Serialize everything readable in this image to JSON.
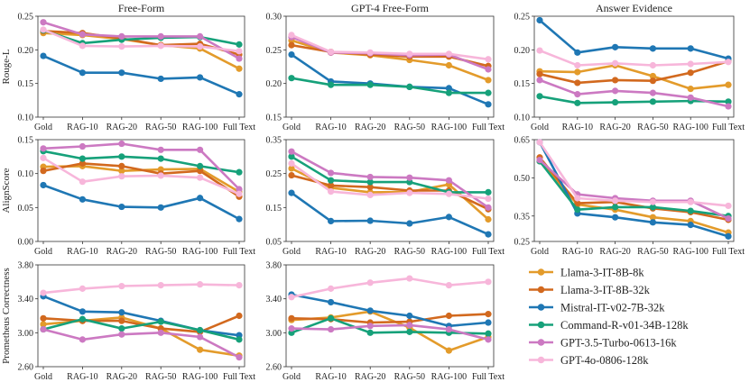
{
  "x_categories": [
    "Gold",
    "RAG-10",
    "RAG-20",
    "RAG-50",
    "RAG-100",
    "Full Text"
  ],
  "colors": {
    "Llama-3-IT-8B-8k": "#E39B2B",
    "Llama-3-IT-8B-32k": "#D2691E",
    "Mistral-IT-v02-7B-32k": "#1F77B4",
    "Command-R-v01-34B-128k": "#16A17A",
    "GPT-3.5-Turbo-0613-16k": "#CC79C2",
    "GPT-4o-0806-128k": "#F7B6DA"
  },
  "legend": [
    "Llama-3-IT-8B-8k",
    "Llama-3-IT-8B-32k",
    "Mistral-IT-v02-7B-32k",
    "Command-R-v01-34B-128k",
    "GPT-3.5-Turbo-0613-16k",
    "GPT-4o-0806-128k"
  ],
  "chart_data": [
    {
      "id": "p00",
      "type": "line",
      "title": "Free-Form",
      "ylabel": "Rouge-L",
      "row": 0,
      "col": 0,
      "ylim": [
        0.1,
        0.25
      ],
      "yticks": [
        "0.10",
        "0.15",
        "0.20",
        "0.25"
      ],
      "series": [
        {
          "name": "Llama-3-IT-8B-8k",
          "values": [
            0.225,
            0.222,
            0.216,
            0.207,
            0.202,
            0.172
          ]
        },
        {
          "name": "Llama-3-IT-8B-32k",
          "values": [
            0.228,
            0.225,
            0.217,
            0.207,
            0.209,
            0.193
          ]
        },
        {
          "name": "Mistral-IT-v02-7B-32k",
          "values": [
            0.191,
            0.166,
            0.166,
            0.157,
            0.159,
            0.134
          ]
        },
        {
          "name": "Command-R-v01-34B-128k",
          "values": [
            0.229,
            0.21,
            0.215,
            0.218,
            0.219,
            0.208
          ]
        },
        {
          "name": "GPT-3.5-Turbo-0613-16k",
          "values": [
            0.241,
            0.223,
            0.22,
            0.22,
            0.22,
            0.187
          ]
        },
        {
          "name": "GPT-4o-0806-128k",
          "values": [
            0.23,
            0.206,
            0.205,
            0.206,
            0.205,
            0.198
          ]
        }
      ]
    },
    {
      "id": "p01",
      "type": "line",
      "title": "GPT-4 Free-Form",
      "ylabel": "",
      "row": 0,
      "col": 1,
      "ylim": [
        0.15,
        0.3
      ],
      "yticks": [
        "0.15",
        "0.20",
        "0.25",
        "0.30"
      ],
      "series": [
        {
          "name": "Llama-3-IT-8B-8k",
          "values": [
            0.264,
            0.246,
            0.242,
            0.235,
            0.227,
            0.205
          ]
        },
        {
          "name": "Llama-3-IT-8B-32k",
          "values": [
            0.257,
            0.247,
            0.243,
            0.24,
            0.24,
            0.226
          ]
        },
        {
          "name": "Mistral-IT-v02-7B-32k",
          "values": [
            0.243,
            0.203,
            0.2,
            0.195,
            0.193,
            0.169
          ]
        },
        {
          "name": "Command-R-v01-34B-128k",
          "values": [
            0.208,
            0.198,
            0.198,
            0.195,
            0.186,
            0.186
          ]
        },
        {
          "name": "GPT-3.5-Turbo-0613-16k",
          "values": [
            0.269,
            0.246,
            0.245,
            0.242,
            0.243,
            0.221
          ]
        },
        {
          "name": "GPT-4o-0806-128k",
          "values": [
            0.272,
            0.247,
            0.246,
            0.244,
            0.244,
            0.236
          ]
        }
      ]
    },
    {
      "id": "p02",
      "type": "line",
      "title": "Answer Evidence",
      "ylabel": "",
      "row": 0,
      "col": 2,
      "ylim": [
        0.1,
        0.25
      ],
      "yticks": [
        "0.10",
        "0.15",
        "0.20",
        "0.25"
      ],
      "series": [
        {
          "name": "Llama-3-IT-8B-8k",
          "values": [
            0.168,
            0.167,
            0.177,
            0.161,
            0.142,
            0.148
          ]
        },
        {
          "name": "Llama-3-IT-8B-32k",
          "values": [
            0.164,
            0.151,
            0.155,
            0.154,
            0.166,
            0.183
          ]
        },
        {
          "name": "Mistral-IT-v02-7B-32k",
          "values": [
            0.244,
            0.196,
            0.204,
            0.202,
            0.202,
            0.187
          ]
        },
        {
          "name": "Command-R-v01-34B-128k",
          "values": [
            0.131,
            0.121,
            0.122,
            0.123,
            0.124,
            0.123
          ]
        },
        {
          "name": "GPT-3.5-Turbo-0613-16k",
          "values": [
            0.155,
            0.134,
            0.139,
            0.136,
            0.129,
            0.116
          ]
        },
        {
          "name": "GPT-4o-0806-128k",
          "values": [
            0.199,
            0.177,
            0.18,
            0.177,
            0.179,
            0.182
          ]
        }
      ]
    },
    {
      "id": "p10",
      "type": "line",
      "title": "",
      "ylabel": "AlignScore",
      "row": 1,
      "col": 0,
      "ylim": [
        0.0,
        0.15
      ],
      "yticks": [
        "0.00",
        "0.05",
        "0.10",
        "0.15"
      ],
      "series": [
        {
          "name": "Llama-3-IT-8B-8k",
          "values": [
            0.11,
            0.111,
            0.104,
            0.106,
            0.107,
            0.073
          ]
        },
        {
          "name": "Llama-3-IT-8B-32k",
          "values": [
            0.104,
            0.115,
            0.111,
            0.1,
            0.104,
            0.066
          ]
        },
        {
          "name": "Mistral-IT-v02-7B-32k",
          "values": [
            0.083,
            0.062,
            0.051,
            0.05,
            0.064,
            0.033
          ]
        },
        {
          "name": "Command-R-v01-34B-128k",
          "values": [
            0.133,
            0.122,
            0.125,
            0.122,
            0.111,
            0.102
          ]
        },
        {
          "name": "GPT-3.5-Turbo-0613-16k",
          "values": [
            0.137,
            0.14,
            0.144,
            0.135,
            0.135,
            0.077
          ]
        },
        {
          "name": "GPT-4o-0806-128k",
          "values": [
            0.123,
            0.088,
            0.096,
            0.097,
            0.094,
            0.07
          ]
        }
      ]
    },
    {
      "id": "p11",
      "type": "line",
      "title": "",
      "ylabel": "",
      "row": 1,
      "col": 1,
      "ylim": [
        0.05,
        0.35
      ],
      "yticks": [
        "0.05",
        "0.15",
        "0.25",
        "0.35"
      ],
      "series": [
        {
          "name": "Llama-3-IT-8B-8k",
          "values": [
            0.265,
            0.208,
            0.195,
            0.196,
            0.218,
            0.115
          ]
        },
        {
          "name": "Llama-3-IT-8B-32k",
          "values": [
            0.245,
            0.215,
            0.21,
            0.2,
            0.2,
            0.145
          ]
        },
        {
          "name": "Mistral-IT-v02-7B-32k",
          "values": [
            0.193,
            0.11,
            0.111,
            0.103,
            0.122,
            0.071
          ]
        },
        {
          "name": "Command-R-v01-34B-128k",
          "values": [
            0.3,
            0.23,
            0.225,
            0.225,
            0.195,
            0.195
          ]
        },
        {
          "name": "GPT-3.5-Turbo-0613-16k",
          "values": [
            0.315,
            0.252,
            0.24,
            0.238,
            0.23,
            0.15
          ]
        },
        {
          "name": "GPT-4o-0806-128k",
          "values": [
            0.28,
            0.197,
            0.187,
            0.193,
            0.19,
            0.176
          ]
        }
      ]
    },
    {
      "id": "p12",
      "type": "line",
      "title": "",
      "ylabel": "",
      "row": 1,
      "col": 2,
      "ylim": [
        0.25,
        0.65
      ],
      "yticks": [
        "0.25",
        "0.35",
        "0.50",
        "0.65"
      ],
      "series": [
        {
          "name": "Llama-3-IT-8B-8k",
          "values": [
            0.565,
            0.395,
            0.375,
            0.345,
            0.33,
            0.285
          ]
        },
        {
          "name": "Llama-3-IT-8B-32k",
          "values": [
            0.58,
            0.4,
            0.405,
            0.38,
            0.365,
            0.335
          ]
        },
        {
          "name": "Mistral-IT-v02-7B-32k",
          "values": [
            0.64,
            0.36,
            0.345,
            0.325,
            0.315,
            0.27
          ]
        },
        {
          "name": "Command-R-v01-34B-128k",
          "values": [
            0.565,
            0.375,
            0.385,
            0.385,
            0.37,
            0.35
          ]
        },
        {
          "name": "GPT-3.5-Turbo-0613-16k",
          "values": [
            0.57,
            0.435,
            0.42,
            0.41,
            0.41,
            0.34
          ]
        },
        {
          "name": "GPT-4o-0806-128k",
          "values": [
            0.64,
            0.42,
            0.41,
            0.405,
            0.405,
            0.39
          ]
        }
      ]
    },
    {
      "id": "p20",
      "type": "line",
      "title": "",
      "ylabel": "Prometheus Correctness",
      "row": 2,
      "col": 0,
      "ylim": [
        2.6,
        3.8
      ],
      "yticks": [
        "2.60",
        "3.00",
        "3.40",
        "3.80"
      ],
      "series": [
        {
          "name": "Llama-3-IT-8B-8k",
          "values": [
            3.1,
            3.14,
            3.18,
            3.05,
            2.8,
            2.73
          ]
        },
        {
          "name": "Llama-3-IT-8B-32k",
          "values": [
            3.17,
            3.14,
            3.14,
            3.05,
            3.01,
            3.2
          ]
        },
        {
          "name": "Mistral-IT-v02-7B-32k",
          "values": [
            3.43,
            3.25,
            3.24,
            3.14,
            3.03,
            2.97
          ]
        },
        {
          "name": "Command-R-v01-34B-128k",
          "values": [
            3.04,
            3.16,
            3.05,
            3.13,
            3.03,
            2.92
          ]
        },
        {
          "name": "GPT-3.5-Turbo-0613-16k",
          "values": [
            3.04,
            2.92,
            2.98,
            3.0,
            2.95,
            2.71
          ]
        },
        {
          "name": "GPT-4o-0806-128k",
          "values": [
            3.47,
            3.52,
            3.55,
            3.56,
            3.57,
            3.56
          ]
        }
      ]
    },
    {
      "id": "p21",
      "type": "line",
      "title": "",
      "ylabel": "",
      "row": 2,
      "col": 1,
      "ylim": [
        2.6,
        3.8
      ],
      "yticks": [
        "2.60",
        "3.00",
        "3.40",
        "3.80"
      ],
      "series": [
        {
          "name": "Llama-3-IT-8B-8k",
          "values": [
            3.15,
            3.18,
            3.25,
            3.06,
            2.79,
            2.95
          ]
        },
        {
          "name": "Llama-3-IT-8B-32k",
          "values": [
            3.17,
            3.16,
            3.12,
            3.13,
            3.2,
            3.22
          ]
        },
        {
          "name": "Mistral-IT-v02-7B-32k",
          "values": [
            3.45,
            3.36,
            3.26,
            3.2,
            3.08,
            3.12
          ]
        },
        {
          "name": "Command-R-v01-34B-128k",
          "values": [
            3.0,
            3.17,
            3.0,
            3.01,
            3.0,
            2.99
          ]
        },
        {
          "name": "GPT-3.5-Turbo-0613-16k",
          "values": [
            3.05,
            3.04,
            3.08,
            3.09,
            3.04,
            2.92
          ]
        },
        {
          "name": "GPT-4o-0806-128k",
          "values": [
            3.42,
            3.52,
            3.59,
            3.64,
            3.56,
            3.6
          ]
        }
      ]
    }
  ]
}
